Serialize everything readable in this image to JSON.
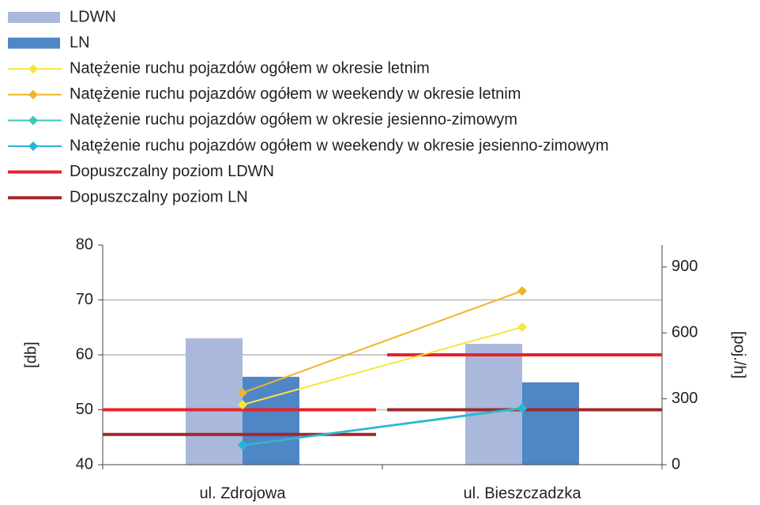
{
  "chart_data": {
    "type": "bar",
    "categories": [
      "ul. Zdrojowa",
      "ul. Bieszczadzka"
    ],
    "ylabel": "[db]",
    "y2label": "[poj./h]",
    "ylim": [
      40,
      80
    ],
    "yticks": [
      40,
      50,
      60,
      70,
      80
    ],
    "y2lim": [
      0,
      1000
    ],
    "y2ticks": [
      0,
      300,
      600,
      900
    ],
    "grid": true,
    "legend": "top",
    "series": [
      {
        "name": "LDWN",
        "kind": "bar",
        "color": "#aab8dc",
        "values": [
          63,
          62
        ]
      },
      {
        "name": "LN",
        "kind": "bar",
        "color": "#4f86c6",
        "values": [
          56,
          55
        ]
      },
      {
        "name": "Natężenie ruchu pojazdów ogółem w okresie letnim",
        "kind": "line",
        "axis": "y2",
        "color": "#f5e63c",
        "values": [
          273,
          626
        ]
      },
      {
        "name": "Natężenie ruchu pojazdów ogółem w weekendy w okresie letnim",
        "kind": "line",
        "axis": "y2",
        "color": "#f0b428",
        "values": [
          327,
          791
        ]
      },
      {
        "name": "Natężenie ruchu pojazdów ogółem w okresie jesienno-zimowym",
        "kind": "line",
        "axis": "y2",
        "color": "#3cc8b4",
        "values": [
          88,
          255
        ]
      },
      {
        "name": "Natężenie ruchu pojazdów ogółem w weekendy w okresie jesienno-zimowym",
        "kind": "line",
        "axis": "y2",
        "color": "#28b4dc",
        "values": [
          90,
          259
        ]
      },
      {
        "name": "Dopuszczalny poziom LDWN",
        "kind": "level",
        "color": "#e8232a",
        "values": [
          50,
          60
        ]
      },
      {
        "name": "Dopuszczalny poziom LN",
        "kind": "level",
        "color": "#a0282d",
        "values": [
          45.5,
          50
        ]
      }
    ]
  }
}
